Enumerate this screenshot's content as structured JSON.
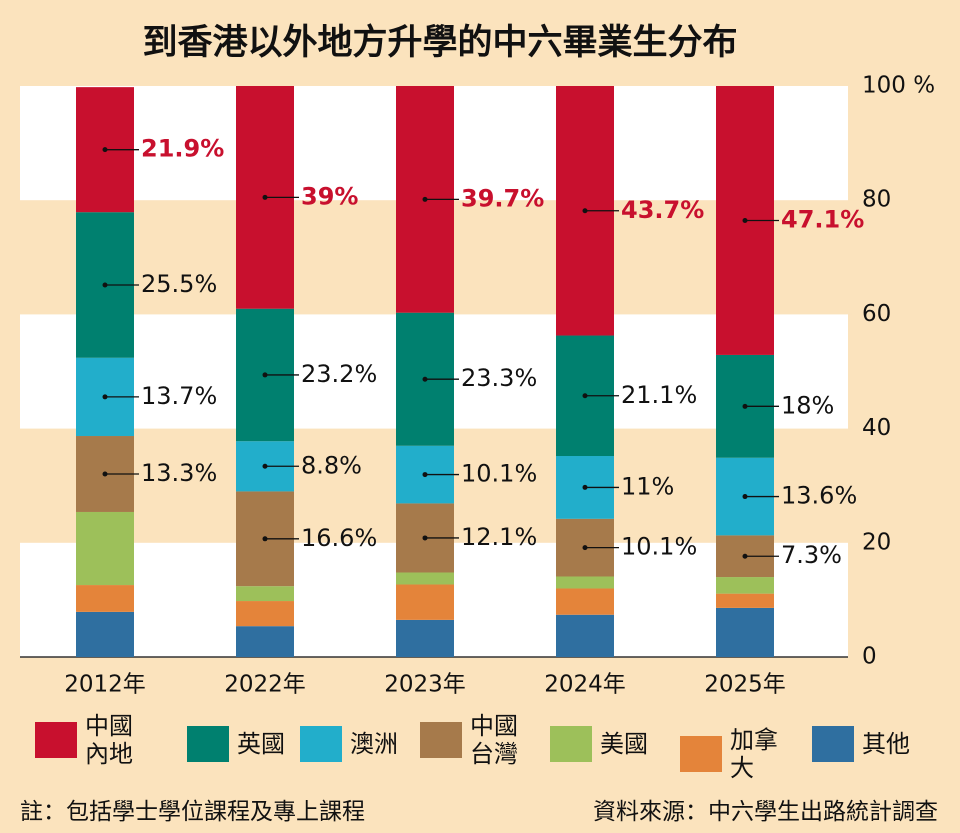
{
  "chart_data": {
    "type": "stacked_bar",
    "title": "到香港以外地方升學的中六畢業生分布",
    "categories": [
      "2012年",
      "2022年",
      "2023年",
      "2024年",
      "2025年"
    ],
    "series": [
      {
        "name": "中國內地",
        "color": "#c8102e",
        "values": [
          21.9,
          39,
          39.7,
          43.7,
          47.1
        ],
        "value_labels": [
          "21.9%",
          "39%",
          "39.7%",
          "43.7%",
          "47.1%"
        ]
      },
      {
        "name": "英國",
        "color": "#00806f",
        "values": [
          25.5,
          23.2,
          23.3,
          21.1,
          18
        ],
        "value_labels": [
          "25.5%",
          "23.2%",
          "23.3%",
          "21.1%",
          "18%"
        ]
      },
      {
        "name": "澳洲",
        "color": "#22aecb",
        "values": [
          13.7,
          8.8,
          10.1,
          11,
          13.6
        ],
        "value_labels": [
          "13.7%",
          "8.8%",
          "10.1%",
          "11%",
          "13.6%"
        ]
      },
      {
        "name": "中國台灣",
        "color": "#a67a4b",
        "values": [
          13.3,
          16.6,
          12.1,
          10.1,
          7.3
        ],
        "value_labels": [
          "13.3%",
          "16.6%",
          "12.1%",
          "10.1%",
          "7.3%"
        ]
      },
      {
        "name": "美國",
        "color": "#9dc05a",
        "values": [
          12.8,
          2.6,
          2.1,
          2.1,
          2.9
        ]
      },
      {
        "name": "加拿大",
        "color": "#e4843a",
        "values": [
          4.7,
          4.4,
          6.2,
          4.6,
          2.5
        ]
      },
      {
        "name": "其他",
        "color": "#2f6fa0",
        "values": [
          7.9,
          5.4,
          6.5,
          7.4,
          8.6
        ]
      }
    ],
    "ylim": [
      0,
      100
    ],
    "yticks": [
      0,
      20,
      40,
      60,
      80,
      {
        "value": 100,
        "label": "100 %"
      }
    ],
    "note": "註：包括學士學位課程及專上課程",
    "source": "資料來源：中六學生出路統計調查"
  }
}
